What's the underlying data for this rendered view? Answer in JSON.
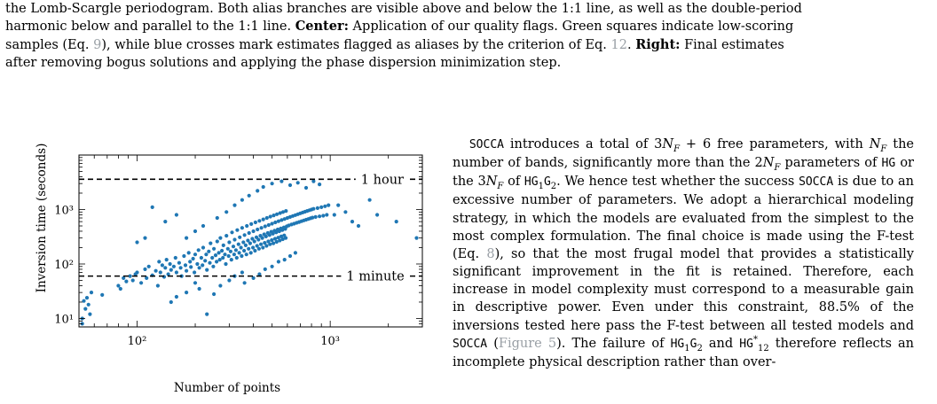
{
  "caption": {
    "line1": "the Lomb-Scargle periodogram. Both alias branches are visible above and below the 1:1 line, as well as the double-period",
    "line2": "harmonic below and parallel to the 1:1 line.",
    "center_label": "Center:",
    "center_text": " Application of our quality flags. Green squares indicate low-scoring",
    "line3a": "samples (Eq. ",
    "eq9": "9",
    "line3b": "), while blue crosses mark estimates flagged as aliases by the criterion of Eq. ",
    "eq12": "12",
    "line3c": ". ",
    "right_label": "Right:",
    "right_text": " Final estimates",
    "line4": "after removing bogus solutions and applying the phase dispersion minimization step."
  },
  "body": {
    "t1": "SOCCA",
    "t2": " introduces a total of 3",
    "t3": "N",
    "t4": "F",
    "t5": " + 6 free parameters, with ",
    "t6": "N",
    "t7": "F",
    "t8": " the number of bands, significantly more than the 2",
    "t9": "N",
    "t10": "F",
    "t11": " parameters of ",
    "t12": "HG",
    "t13": " or the 3",
    "t14": "N",
    "t15": "F",
    "t16": " of ",
    "t17": "HG",
    "t18": "1",
    "t19": "G",
    "t20": "2",
    "t21": ". We hence test whether the success ",
    "t22": "SOCCA",
    "t23": " is due to an excessive number of parameters. We adopt a hierarchical modeling strategy, in which the models are evaluated from the simplest to the most complex formulation. The final choice is made using the F-test (Eq. ",
    "t24": "8",
    "t25": "), so that the most frugal model that provides a statistically significant improvement in the fit is retained. Therefore, each increase in model complexity must correspond to a measurable gain in descriptive power. Even under this constraint, 88.5% of the inversions tested here pass the F-test between all tested models and ",
    "t26": "SOCCA",
    "t27": " (",
    "t28": "Figure 5",
    "t29": "). The failure of ",
    "t30": "HG",
    "t31": "1",
    "t32": "G",
    "t33": "2",
    "t34": " and ",
    "t35": "HG",
    "t36": "*",
    "t37": "12",
    "t38": " therefore reflects an incomplete physical description rather than over-"
  },
  "chart_data": {
    "type": "scatter",
    "xlabel": "Number of points",
    "ylabel": "Inversion time (seconds)",
    "xscale": "log",
    "yscale": "log",
    "xlim": [
      50,
      3000
    ],
    "ylim": [
      7,
      10000
    ],
    "x_tick_labels": [
      "10²",
      "10³"
    ],
    "x_ticks": [
      100,
      1000
    ],
    "y_tick_labels": [
      "10¹",
      "10²",
      "10³"
    ],
    "y_ticks": [
      10,
      100,
      1000
    ],
    "hlines": [
      {
        "y": 3600,
        "label": "1 hour"
      },
      {
        "y": 60,
        "label": "1 minute"
      }
    ],
    "marker_color": "#1f77b4",
    "points": [
      [
        52,
        8
      ],
      [
        53,
        21
      ],
      [
        54,
        15
      ],
      [
        55,
        24
      ],
      [
        56,
        18
      ],
      [
        57,
        12
      ],
      [
        58,
        30
      ],
      [
        66,
        27
      ],
      [
        52,
        10
      ],
      [
        80,
        40
      ],
      [
        82,
        35
      ],
      [
        85,
        55
      ],
      [
        88,
        48
      ],
      [
        92,
        60
      ],
      [
        95,
        50
      ],
      [
        98,
        65
      ],
      [
        100,
        70
      ],
      [
        105,
        45
      ],
      [
        110,
        80
      ],
      [
        112,
        55
      ],
      [
        115,
        90
      ],
      [
        120,
        62
      ],
      [
        125,
        75
      ],
      [
        128,
        40
      ],
      [
        130,
        110
      ],
      [
        132,
        70
      ],
      [
        135,
        95
      ],
      [
        138,
        58
      ],
      [
        140,
        85
      ],
      [
        142,
        120
      ],
      [
        145,
        65
      ],
      [
        148,
        100
      ],
      [
        150,
        78
      ],
      [
        155,
        90
      ],
      [
        158,
        130
      ],
      [
        160,
        70
      ],
      [
        165,
        105
      ],
      [
        168,
        85
      ],
      [
        170,
        60
      ],
      [
        175,
        140
      ],
      [
        178,
        95
      ],
      [
        180,
        75
      ],
      [
        185,
        160
      ],
      [
        188,
        110
      ],
      [
        190,
        88
      ],
      [
        195,
        125
      ],
      [
        198,
        70
      ],
      [
        200,
        150
      ],
      [
        205,
        100
      ],
      [
        208,
        180
      ],
      [
        210,
        85
      ],
      [
        215,
        130
      ],
      [
        218,
        95
      ],
      [
        220,
        200
      ],
      [
        225,
        115
      ],
      [
        228,
        150
      ],
      [
        230,
        78
      ],
      [
        235,
        170
      ],
      [
        238,
        105
      ],
      [
        240,
        240
      ],
      [
        245,
        130
      ],
      [
        248,
        90
      ],
      [
        250,
        190
      ],
      [
        255,
        145
      ],
      [
        258,
        110
      ],
      [
        260,
        260
      ],
      [
        265,
        160
      ],
      [
        268,
        120
      ],
      [
        270,
        300
      ],
      [
        275,
        175
      ],
      [
        278,
        130
      ],
      [
        280,
        220
      ],
      [
        285,
        150
      ],
      [
        288,
        100
      ],
      [
        290,
        330
      ],
      [
        295,
        190
      ],
      [
        298,
        140
      ],
      [
        300,
        250
      ],
      [
        305,
        170
      ],
      [
        308,
        120
      ],
      [
        310,
        380
      ],
      [
        315,
        210
      ],
      [
        318,
        150
      ],
      [
        320,
        280
      ],
      [
        325,
        180
      ],
      [
        328,
        130
      ],
      [
        330,
        420
      ],
      [
        335,
        230
      ],
      [
        338,
        160
      ],
      [
        340,
        310
      ],
      [
        345,
        200
      ],
      [
        348,
        140
      ],
      [
        350,
        460
      ],
      [
        355,
        250
      ],
      [
        358,
        175
      ],
      [
        360,
        340
      ],
      [
        365,
        220
      ],
      [
        368,
        150
      ],
      [
        370,
        500
      ],
      [
        375,
        270
      ],
      [
        378,
        190
      ],
      [
        380,
        370
      ],
      [
        385,
        240
      ],
      [
        388,
        160
      ],
      [
        390,
        540
      ],
      [
        395,
        290
      ],
      [
        398,
        200
      ],
      [
        400,
        400
      ],
      [
        405,
        260
      ],
      [
        408,
        175
      ],
      [
        410,
        580
      ],
      [
        415,
        310
      ],
      [
        418,
        215
      ],
      [
        420,
        430
      ],
      [
        425,
        280
      ],
      [
        428,
        190
      ],
      [
        430,
        620
      ],
      [
        435,
        330
      ],
      [
        438,
        230
      ],
      [
        440,
        460
      ],
      [
        445,
        300
      ],
      [
        448,
        200
      ],
      [
        450,
        660
      ],
      [
        455,
        350
      ],
      [
        458,
        245
      ],
      [
        460,
        490
      ],
      [
        465,
        320
      ],
      [
        468,
        215
      ],
      [
        470,
        700
      ],
      [
        475,
        370
      ],
      [
        478,
        260
      ],
      [
        480,
        520
      ],
      [
        485,
        340
      ],
      [
        488,
        230
      ],
      [
        490,
        740
      ],
      [
        495,
        390
      ],
      [
        498,
        275
      ],
      [
        500,
        550
      ],
      [
        505,
        360
      ],
      [
        508,
        240
      ],
      [
        510,
        780
      ],
      [
        515,
        410
      ],
      [
        518,
        290
      ],
      [
        520,
        580
      ],
      [
        525,
        380
      ],
      [
        528,
        255
      ],
      [
        530,
        820
      ],
      [
        535,
        430
      ],
      [
        538,
        305
      ],
      [
        540,
        610
      ],
      [
        545,
        400
      ],
      [
        548,
        270
      ],
      [
        550,
        860
      ],
      [
        555,
        450
      ],
      [
        558,
        320
      ],
      [
        560,
        640
      ],
      [
        565,
        420
      ],
      [
        568,
        285
      ],
      [
        570,
        900
      ],
      [
        575,
        470
      ],
      [
        578,
        335
      ],
      [
        580,
        670
      ],
      [
        585,
        440
      ],
      [
        588,
        300
      ],
      [
        590,
        940
      ],
      [
        595,
        490
      ],
      [
        600,
        700
      ],
      [
        610,
        510
      ],
      [
        620,
        730
      ],
      [
        630,
        530
      ],
      [
        640,
        760
      ],
      [
        650,
        550
      ],
      [
        660,
        790
      ],
      [
        670,
        570
      ],
      [
        680,
        820
      ],
      [
        690,
        590
      ],
      [
        700,
        850
      ],
      [
        710,
        610
      ],
      [
        720,
        880
      ],
      [
        730,
        630
      ],
      [
        740,
        910
      ],
      [
        750,
        650
      ],
      [
        760,
        940
      ],
      [
        770,
        670
      ],
      [
        780,
        970
      ],
      [
        790,
        690
      ],
      [
        800,
        1000
      ],
      [
        810,
        710
      ],
      [
        820,
        1030
      ],
      [
        840,
        730
      ],
      [
        860,
        1060
      ],
      [
        880,
        750
      ],
      [
        900,
        1100
      ],
      [
        920,
        770
      ],
      [
        940,
        1150
      ],
      [
        960,
        800
      ],
      [
        980,
        1200
      ],
      [
        180,
        300
      ],
      [
        200,
        400
      ],
      [
        220,
        500
      ],
      [
        260,
        700
      ],
      [
        290,
        900
      ],
      [
        320,
        1200
      ],
      [
        350,
        1500
      ],
      [
        380,
        1800
      ],
      [
        420,
        2200
      ],
      [
        450,
        2600
      ],
      [
        500,
        3000
      ],
      [
        560,
        3300
      ],
      [
        620,
        2800
      ],
      [
        680,
        3100
      ],
      [
        750,
        2500
      ],
      [
        820,
        3300
      ],
      [
        880,
        2900
      ],
      [
        120,
        1100
      ],
      [
        160,
        800
      ],
      [
        140,
        600
      ],
      [
        110,
        300
      ],
      [
        100,
        250
      ],
      [
        150,
        20
      ],
      [
        160,
        25
      ],
      [
        180,
        30
      ],
      [
        200,
        45
      ],
      [
        210,
        35
      ],
      [
        230,
        12
      ],
      [
        250,
        28
      ],
      [
        270,
        40
      ],
      [
        300,
        50
      ],
      [
        320,
        60
      ],
      [
        350,
        70
      ],
      [
        360,
        45
      ],
      [
        400,
        55
      ],
      [
        430,
        65
      ],
      [
        460,
        80
      ],
      [
        500,
        90
      ],
      [
        540,
        110
      ],
      [
        580,
        120
      ],
      [
        620,
        140
      ],
      [
        660,
        160
      ],
      [
        1200,
        900
      ],
      [
        1300,
        600
      ],
      [
        1600,
        1500
      ],
      [
        1750,
        800
      ],
      [
        2200,
        600
      ],
      [
        2800,
        300
      ],
      [
        1400,
        500
      ],
      [
        1100,
        1200
      ],
      [
        1050,
        800
      ]
    ]
  }
}
